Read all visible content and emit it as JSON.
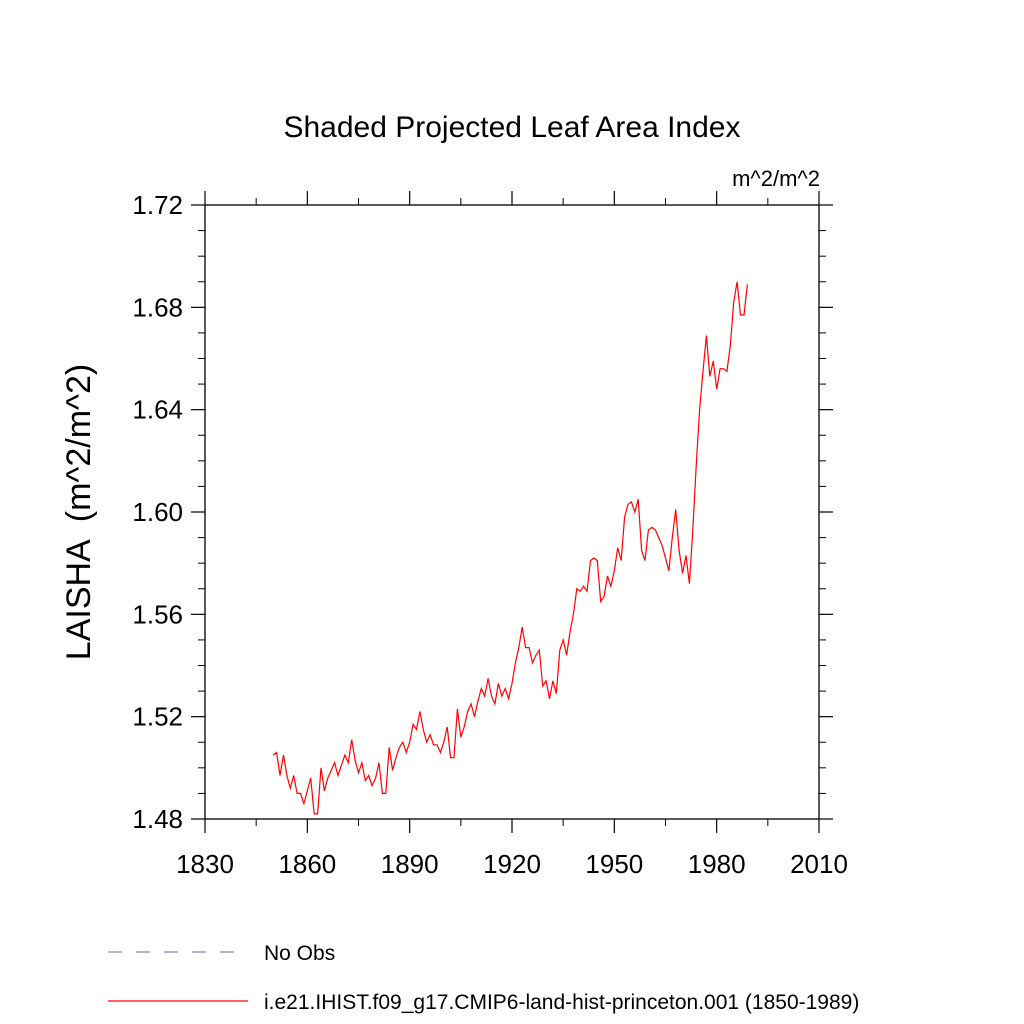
{
  "chart_data": {
    "type": "line",
    "title": "Shaded Projected Leaf Area Index",
    "units_label": "m^2/m^2",
    "ylabel": "LAISHA  (m^2/m^2)",
    "xlabel": "",
    "xlim": [
      1830,
      2010
    ],
    "ylim": [
      1.48,
      1.72
    ],
    "x_ticks": [
      1830,
      1860,
      1890,
      1920,
      1950,
      1980,
      2010
    ],
    "x_tick_labels": [
      "1830",
      "1860",
      "1890",
      "1920",
      "1950",
      "1980",
      "2010"
    ],
    "y_ticks": [
      1.48,
      1.52,
      1.56,
      1.6,
      1.64,
      1.68,
      1.72
    ],
    "y_tick_labels": [
      "1.48",
      "1.52",
      "1.56",
      "1.60",
      "1.64",
      "1.68",
      "1.72"
    ],
    "legend_position": "bottom-left",
    "series": [
      {
        "name": "i.e21.IHIST.f09_g17.CMIP6-land-hist-princeton.001 (1850-1989)",
        "color": "#ff0000",
        "style": "solid",
        "x": [
          1850,
          1851,
          1852,
          1853,
          1854,
          1855,
          1856,
          1857,
          1858,
          1859,
          1860,
          1861,
          1862,
          1863,
          1864,
          1865,
          1866,
          1867,
          1868,
          1869,
          1870,
          1871,
          1872,
          1873,
          1874,
          1875,
          1876,
          1877,
          1878,
          1879,
          1880,
          1881,
          1882,
          1883,
          1884,
          1885,
          1886,
          1887,
          1888,
          1889,
          1890,
          1891,
          1892,
          1893,
          1894,
          1895,
          1896,
          1897,
          1898,
          1899,
          1900,
          1901,
          1902,
          1903,
          1904,
          1905,
          1906,
          1907,
          1908,
          1909,
          1910,
          1911,
          1912,
          1913,
          1914,
          1915,
          1916,
          1917,
          1918,
          1919,
          1920,
          1921,
          1922,
          1923,
          1924,
          1925,
          1926,
          1927,
          1928,
          1929,
          1930,
          1931,
          1932,
          1933,
          1934,
          1935,
          1936,
          1937,
          1938,
          1939,
          1940,
          1941,
          1942,
          1943,
          1944,
          1945,
          1946,
          1947,
          1948,
          1949,
          1950,
          1951,
          1952,
          1953,
          1954,
          1955,
          1956,
          1957,
          1958,
          1959,
          1960,
          1961,
          1962,
          1963,
          1964,
          1965,
          1966,
          1967,
          1968,
          1969,
          1970,
          1971,
          1972,
          1973,
          1974,
          1975,
          1976,
          1977,
          1978,
          1979,
          1980,
          1981,
          1982,
          1983,
          1984,
          1985,
          1986,
          1987,
          1988,
          1989
        ],
        "y": [
          1.505,
          1.506,
          1.497,
          1.505,
          1.497,
          1.492,
          1.497,
          1.49,
          1.49,
          1.486,
          1.491,
          1.496,
          1.482,
          1.482,
          1.5,
          1.491,
          1.496,
          1.499,
          1.502,
          1.497,
          1.501,
          1.505,
          1.502,
          1.511,
          1.503,
          1.498,
          1.502,
          1.495,
          1.497,
          1.493,
          1.496,
          1.502,
          1.49,
          1.49,
          1.508,
          1.499,
          1.504,
          1.508,
          1.51,
          1.506,
          1.51,
          1.517,
          1.515,
          1.522,
          1.515,
          1.51,
          1.513,
          1.509,
          1.509,
          1.506,
          1.51,
          1.516,
          1.504,
          1.504,
          1.523,
          1.512,
          1.516,
          1.522,
          1.525,
          1.52,
          1.526,
          1.531,
          1.528,
          1.535,
          1.528,
          1.525,
          1.533,
          1.528,
          1.531,
          1.527,
          1.533,
          1.541,
          1.547,
          1.555,
          1.547,
          1.547,
          1.541,
          1.544,
          1.546,
          1.532,
          1.534,
          1.527,
          1.534,
          1.529,
          1.546,
          1.55,
          1.544,
          1.553,
          1.56,
          1.57,
          1.569,
          1.571,
          1.569,
          1.581,
          1.582,
          1.581,
          1.565,
          1.567,
          1.575,
          1.571,
          1.577,
          1.586,
          1.581,
          1.598,
          1.603,
          1.604,
          1.6,
          1.605,
          1.585,
          1.581,
          1.593,
          1.594,
          1.593,
          1.59,
          1.587,
          1.582,
          1.577,
          1.59,
          1.601,
          1.585,
          1.576,
          1.583,
          1.572,
          1.593,
          1.618,
          1.64,
          1.655,
          1.669,
          1.653,
          1.659,
          1.648,
          1.656,
          1.656,
          1.655,
          1.665,
          1.682,
          1.69,
          1.677,
          1.677,
          1.689
        ]
      }
    ],
    "legend": [
      {
        "label": "No Obs",
        "color": "#8c7fc0",
        "style": "dashed"
      },
      {
        "label": "i.e21.IHIST.f09_g17.CMIP6-land-hist-princeton.001 (1850-1989)",
        "color": "#ff0000",
        "style": "solid"
      }
    ]
  }
}
